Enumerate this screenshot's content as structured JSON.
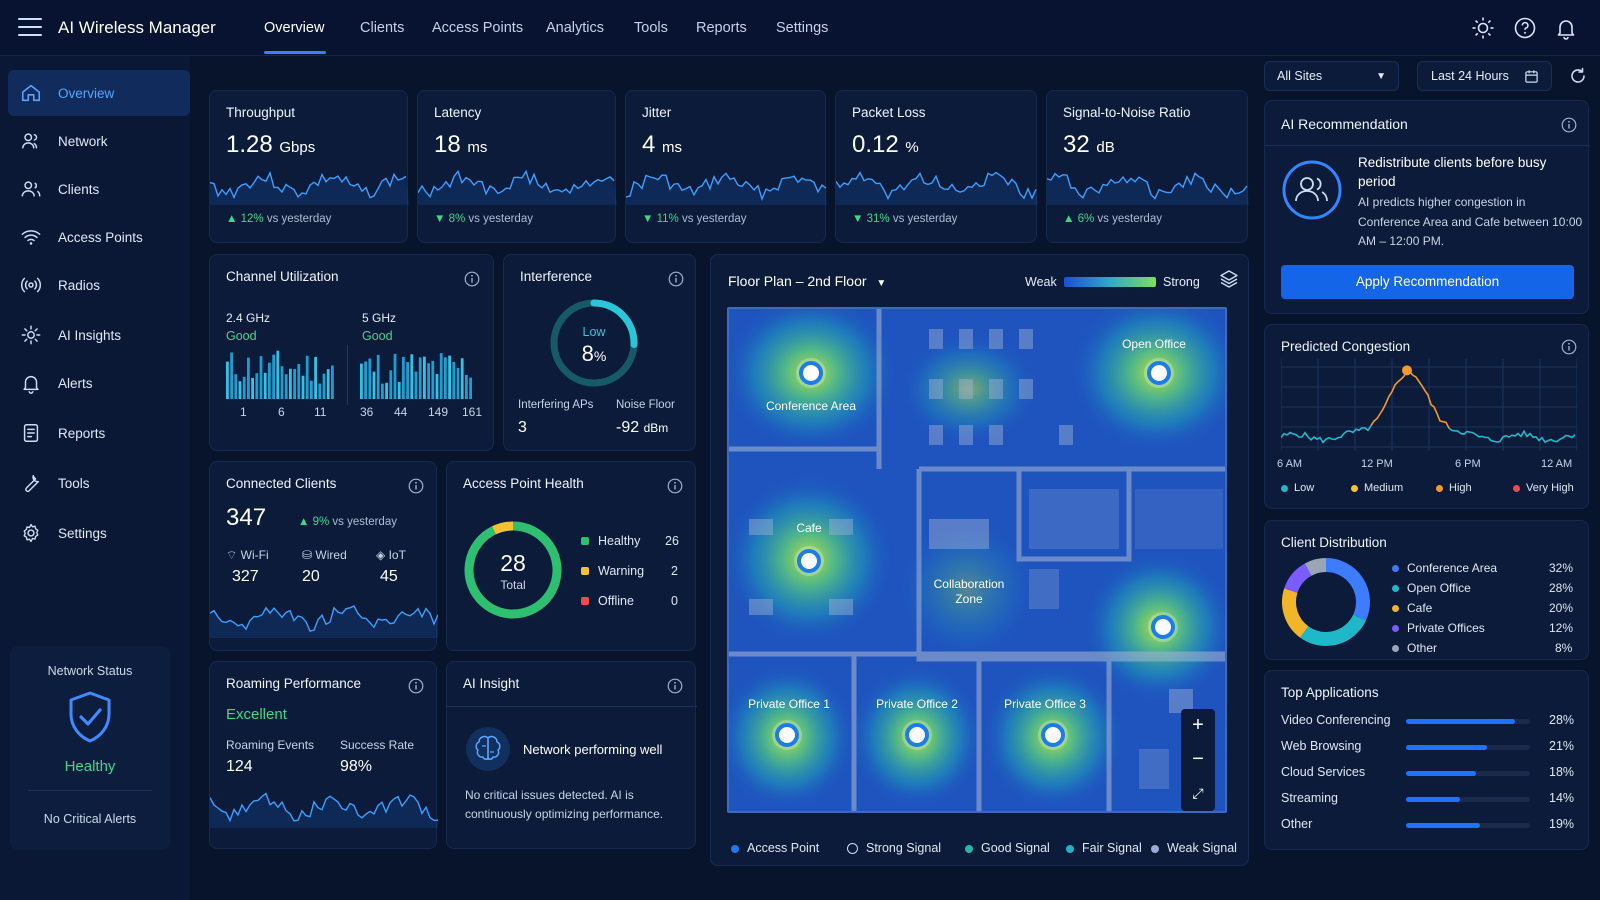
{
  "app": {
    "title": "AI Wireless Manager"
  },
  "nav": {
    "tabs": [
      "Overview",
      "Clients",
      "Access Points",
      "Analytics",
      "Tools",
      "Reports",
      "Settings"
    ]
  },
  "sidebar": {
    "items": [
      "Overview",
      "Network",
      "Clients",
      "Access Points",
      "Radios",
      "AI Insights",
      "Alerts",
      "Reports",
      "Tools",
      "Settings"
    ]
  },
  "network_status": {
    "title": "Network Status",
    "state": "Healthy",
    "alerts": "No Critical Alerts"
  },
  "controls": {
    "site": "All Sites",
    "range": "Last 24 Hours"
  },
  "kpis": [
    {
      "title": "Throughput",
      "value": "1.28",
      "unit": "Gbps",
      "delta": "12%",
      "dir": "up",
      "suffix": "vs yesterday"
    },
    {
      "title": "Latency",
      "value": "18",
      "unit": "ms",
      "delta": "8%",
      "dir": "down",
      "suffix": "vs yesterday"
    },
    {
      "title": "Jitter",
      "value": "4",
      "unit": "ms",
      "delta": "11%",
      "dir": "down",
      "suffix": "vs yesterday"
    },
    {
      "title": "Packet Loss",
      "value": "0.12",
      "unit": "%",
      "delta": "31%",
      "dir": "down",
      "suffix": "vs yesterday"
    },
    {
      "title": "Signal-to-Noise Ratio",
      "value": "32",
      "unit": "dB",
      "delta": "6%",
      "dir": "up",
      "suffix": "vs yesterday"
    }
  ],
  "channel": {
    "title": "Channel Utilization",
    "band24": {
      "label": "2.4 GHz",
      "status": "Good",
      "ticks": [
        "1",
        "6",
        "11"
      ]
    },
    "band5": {
      "label": "5 GHz",
      "status": "Good",
      "ticks": [
        "36",
        "44",
        "149",
        "161"
      ]
    }
  },
  "interference": {
    "title": "Interference",
    "level": "Low",
    "value": "8",
    "unit": "%",
    "percent": 8,
    "aps_label": "Interfering APs",
    "aps": "3",
    "noise_label": "Noise Floor",
    "noise": "-92",
    "noise_unit": "dBm"
  },
  "clients": {
    "title": "Connected Clients",
    "total": "347",
    "delta": "9%",
    "suffix": "vs yesterday",
    "types": [
      {
        "label": "Wi-Fi",
        "value": "327"
      },
      {
        "label": "Wired",
        "value": "20"
      },
      {
        "label": "IoT",
        "value": "45"
      }
    ]
  },
  "ap_health": {
    "title": "Access Point Health",
    "total": "28",
    "total_label": "Total",
    "items": [
      {
        "label": "Healthy",
        "value": "26",
        "color": "#2fbf71",
        "n": 26
      },
      {
        "label": "Warning",
        "value": "2",
        "color": "#f2c230",
        "n": 2
      },
      {
        "label": "Offline",
        "value": "0",
        "color": "#f04a4a",
        "n": 0
      }
    ]
  },
  "roaming": {
    "title": "Roaming Performance",
    "status": "Excellent",
    "events_label": "Roaming Events",
    "events": "124",
    "rate_label": "Success Rate",
    "rate": "98%"
  },
  "ai_insight": {
    "title": "AI Insight",
    "headline": "Network performing well",
    "body": "No critical issues detected. AI is continuously optimizing performance."
  },
  "floorplan": {
    "title": "Floor Plan – 2nd Floor",
    "weak": "Weak",
    "strong": "Strong",
    "rooms": {
      "conference": "Conference Area",
      "open_office": "Open Office",
      "cafe": "Cafe",
      "collab": "Collaboration Zone",
      "po1": "Private Office 1",
      "po2": "Private Office 2",
      "po3": "Private Office 3"
    },
    "legend": [
      "Access Point",
      "Strong Signal",
      "Good Signal",
      "Fair Signal",
      "Weak Signal"
    ]
  },
  "recommendation": {
    "title": "AI Recommendation",
    "headline": "Redistribute clients before busy period",
    "body": "AI predicts higher congestion in Conference Area and Cafe between 10:00 AM – 12:00 PM.",
    "button": "Apply Recommendation"
  },
  "congestion": {
    "title": "Predicted Congestion",
    "xticks": [
      "6 AM",
      "12 PM",
      "6 PM",
      "12 AM"
    ],
    "legend": [
      "Low",
      "Medium",
      "High",
      "Very High"
    ]
  },
  "distribution": {
    "title": "Client Distribution",
    "items": [
      {
        "label": "Conference Area",
        "value": "32%",
        "n": 32,
        "color": "#3d7bff"
      },
      {
        "label": "Open Office",
        "value": "28%",
        "n": 28,
        "color": "#1fb8c9"
      },
      {
        "label": "Cafe",
        "value": "20%",
        "n": 20,
        "color": "#f2b52a"
      },
      {
        "label": "Private Offices",
        "value": "12%",
        "n": 12,
        "color": "#7b5cff"
      },
      {
        "label": "Other",
        "value": "8%",
        "n": 8,
        "color": "#9aa6b8"
      }
    ]
  },
  "top_apps": {
    "title": "Top Applications",
    "items": [
      {
        "label": "Video Conferencing",
        "value": "28%",
        "n": 28
      },
      {
        "label": "Web Browsing",
        "value": "21%",
        "n": 21
      },
      {
        "label": "Cloud Services",
        "value": "18%",
        "n": 18
      },
      {
        "label": "Streaming",
        "value": "14%",
        "n": 14
      },
      {
        "label": "Other",
        "value": "19%",
        "n": 19
      }
    ]
  },
  "colors": {
    "accent": "#3d7bff",
    "good": "#39d98a",
    "warn": "#f2c230",
    "bad": "#f04a4a",
    "teal": "#1fb8c9"
  }
}
